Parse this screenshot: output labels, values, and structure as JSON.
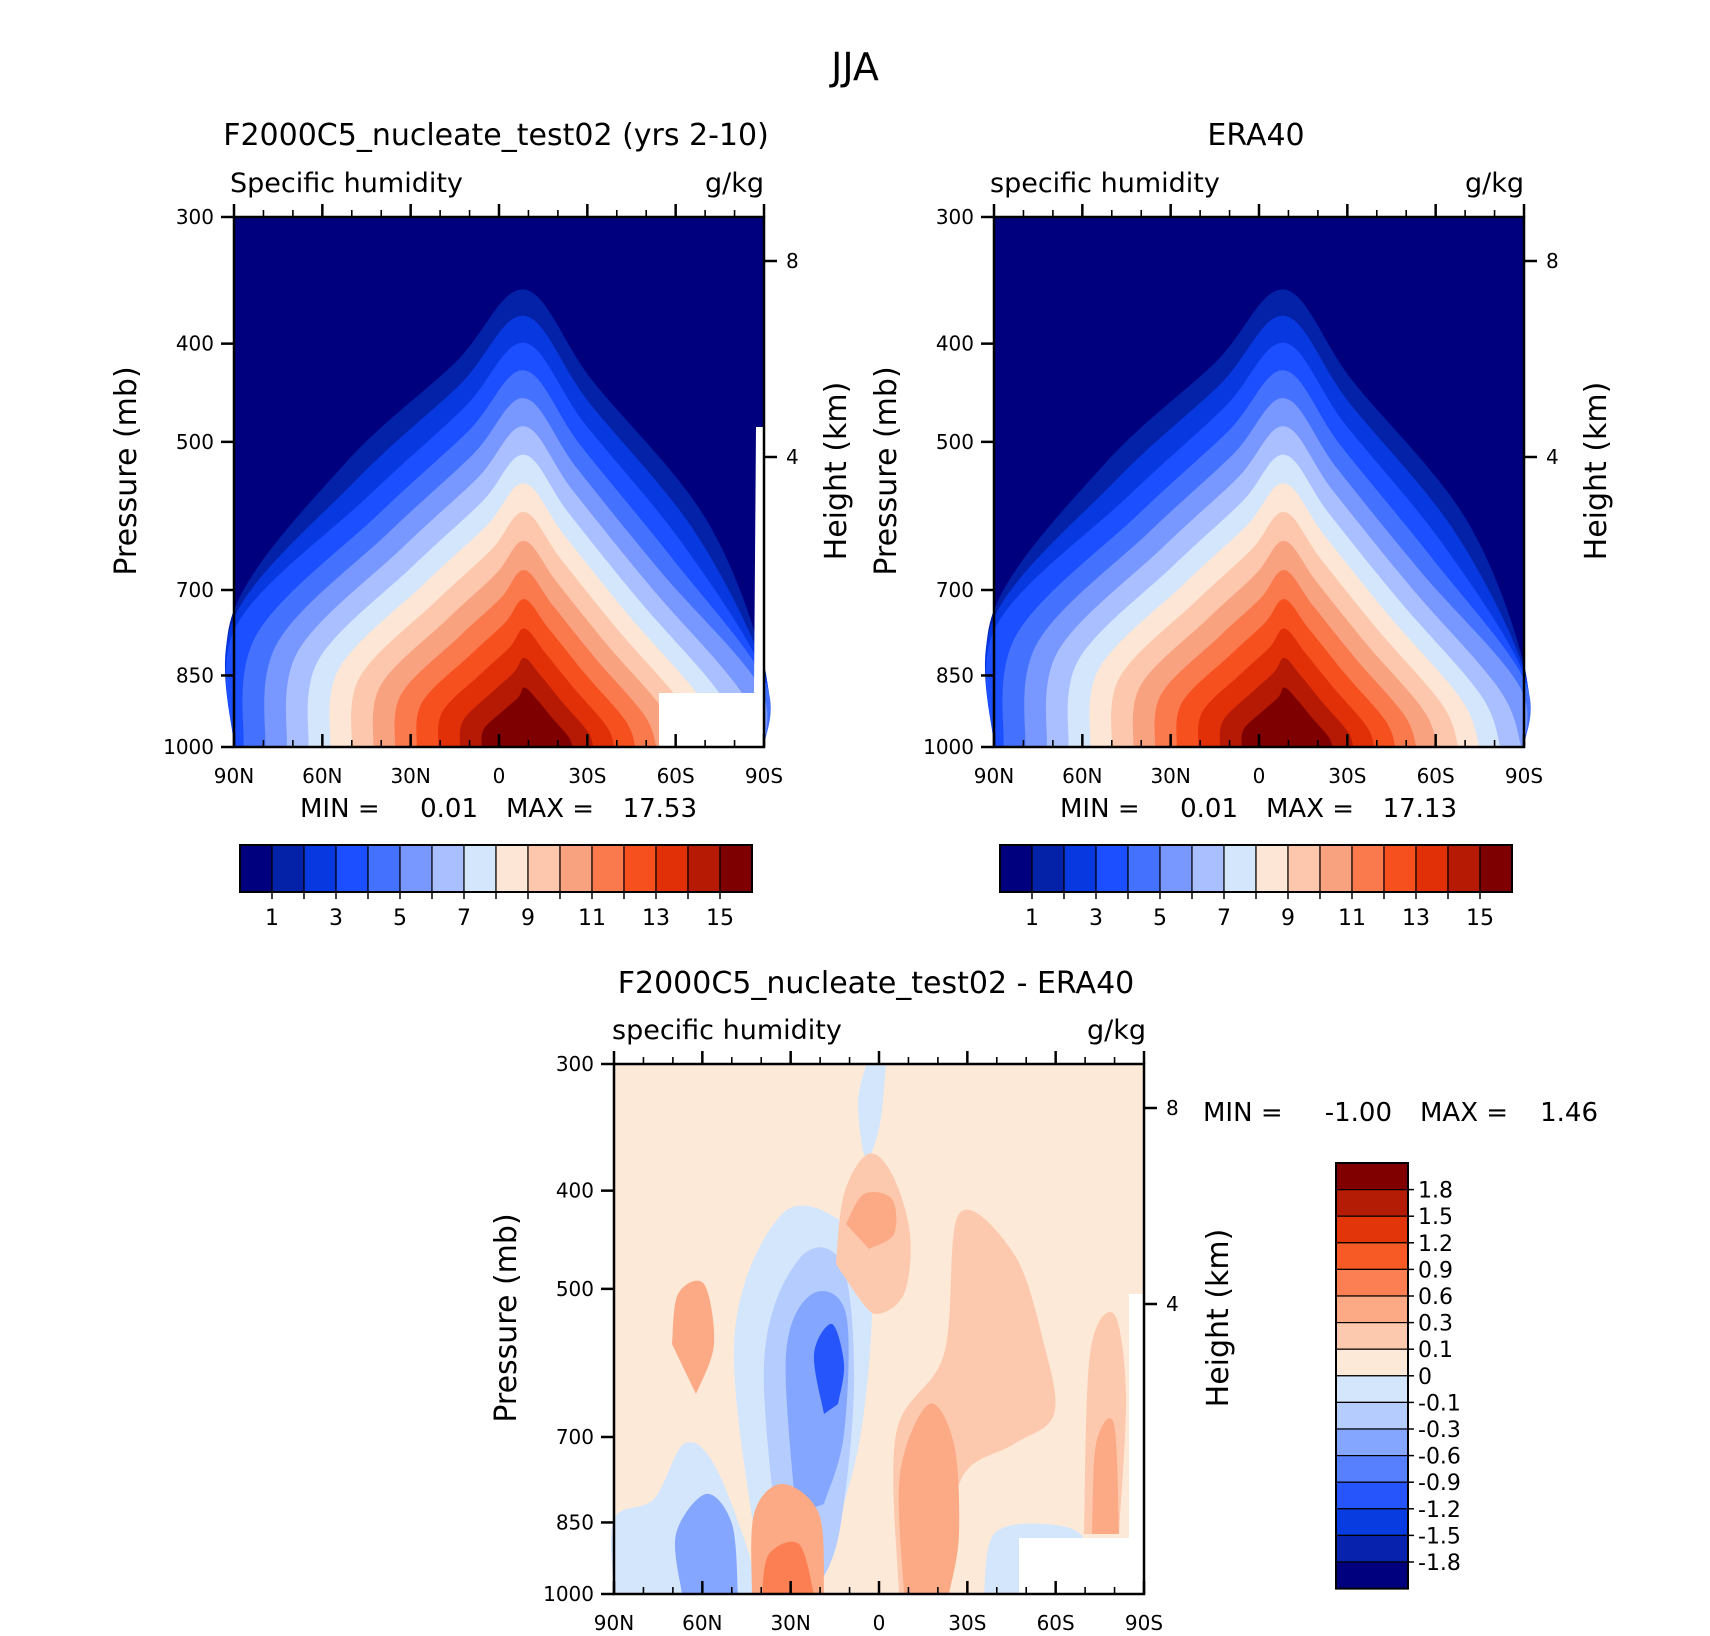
{
  "figure_title": "JJA",
  "chart_data": [
    {
      "type": "heatmap",
      "title": "F2000C5_nucleate_test02 (yrs 2-10)",
      "left_label": "Specific humidity",
      "right_label": "g/kg",
      "ylabel": "Pressure (mb)",
      "ylabel_right": "Height (km)",
      "x_ticks": [
        "90N",
        "60N",
        "30N",
        "0",
        "30S",
        "60S",
        "90S"
      ],
      "y_ticks": [
        "300",
        "400",
        "500",
        "700",
        "850",
        "1000"
      ],
      "height_ticks": [
        "8",
        "4"
      ],
      "min_label": "MIN =",
      "min_value": "0.01",
      "max_label": "MAX =",
      "max_value": "17.53",
      "colorbar_labels": [
        "1",
        "3",
        "5",
        "7",
        "9",
        "11",
        "13",
        "15"
      ],
      "peak_latitude": 10,
      "peak_value": 17.53
    },
    {
      "type": "heatmap",
      "title": "ERA40",
      "left_label": "specific humidity",
      "right_label": "g/kg",
      "ylabel": "Pressure (mb)",
      "ylabel_right": "Height (km)",
      "x_ticks": [
        "90N",
        "60N",
        "30N",
        "0",
        "30S",
        "60S",
        "90S"
      ],
      "y_ticks": [
        "300",
        "400",
        "500",
        "700",
        "850",
        "1000"
      ],
      "height_ticks": [
        "8",
        "4"
      ],
      "min_label": "MIN =",
      "min_value": "0.01",
      "max_label": "MAX =",
      "max_value": "17.13",
      "colorbar_labels": [
        "1",
        "3",
        "5",
        "7",
        "9",
        "11",
        "13",
        "15"
      ],
      "peak_latitude": 10,
      "peak_value": 17.13
    },
    {
      "type": "heatmap",
      "title": "F2000C5_nucleate_test02 - ERA40",
      "left_label": "specific humidity",
      "right_label": "g/kg",
      "ylabel": "Pressure (mb)",
      "ylabel_right": "Height (km)",
      "x_ticks": [
        "90N",
        "60N",
        "30N",
        "0",
        "30S",
        "60S",
        "90S"
      ],
      "y_ticks": [
        "300",
        "400",
        "500",
        "700",
        "850",
        "1000"
      ],
      "height_ticks": [
        "8",
        "4"
      ],
      "min_label": "MIN =",
      "min_value": "-1.00",
      "max_label": "MAX =",
      "max_value": "1.46",
      "colorbar_labels": [
        "1.8",
        "1.5",
        "1.2",
        "0.9",
        "0.6",
        "0.3",
        "0.1",
        "0",
        "-0.1",
        "-0.3",
        "-0.6",
        "-0.9",
        "-1.2",
        "-1.5",
        "-1.8"
      ]
    }
  ],
  "colors": {
    "abs_palette": [
      "#00007f",
      "#0322a8",
      "#0838e0",
      "#1b4fff",
      "#4472ff",
      "#7898ff",
      "#aabfff",
      "#d4e6fb",
      "#fde6d5",
      "#fcc7ac",
      "#f9a280",
      "#fa7a4e",
      "#f6501e",
      "#e13008",
      "#b61a05",
      "#7f0000"
    ],
    "diff_palette": [
      "#800000",
      "#b41c06",
      "#e23509",
      "#f75a24",
      "#fb7f52",
      "#fbaa85",
      "#fdc9ae",
      "#fde9d8",
      "#d4e6fb",
      "#b5ccff",
      "#85a6ff",
      "#5680ff",
      "#2555fb",
      "#083ce0",
      "#0722ad",
      "#00007f"
    ],
    "diff_background": "#fde9d8"
  }
}
